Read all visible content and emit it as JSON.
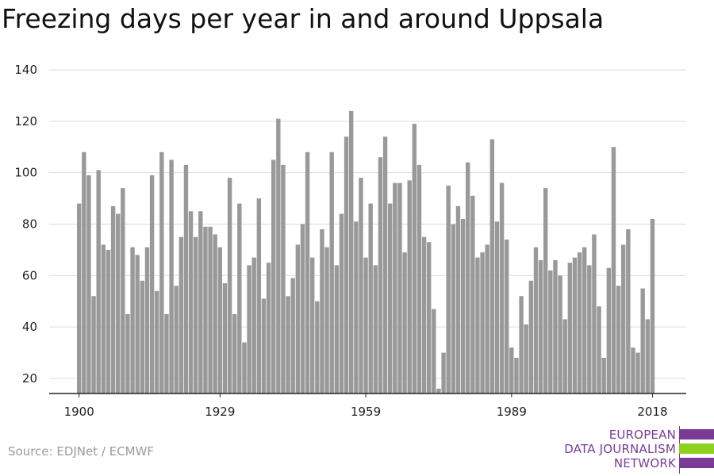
{
  "title": "Freezing days per year in and around Uppsala",
  "source": "Source: EDJNet / ECMWF",
  "logo": {
    "lines": [
      "EUROPEAN",
      "DATA JOURNALISM",
      "NETWORK"
    ],
    "colors": {
      "purple": "#7a3b96",
      "green": "#8fd11f"
    }
  },
  "colors": {
    "bar": "#999999",
    "grid": "#dddddd",
    "axis": "#222222",
    "text": "#222222"
  },
  "chart_data": {
    "type": "bar",
    "title": "Freezing days per year in and around Uppsala",
    "xlabel": "",
    "ylabel": "",
    "x_start": 1900,
    "x_end": 2018,
    "x_ticks": [
      "1900",
      "1929",
      "1959",
      "1989",
      "2018"
    ],
    "y_ticks": [
      "20",
      "40",
      "60",
      "80",
      "100",
      "120",
      "140"
    ],
    "ylim": [
      13,
      140
    ],
    "grid": true,
    "values": [
      88,
      108,
      99,
      52,
      101,
      72,
      70,
      87,
      84,
      94,
      45,
      71,
      68,
      58,
      71,
      99,
      54,
      108,
      45,
      105,
      56,
      75,
      103,
      85,
      75,
      85,
      79,
      79,
      76,
      71,
      57,
      98,
      45,
      88,
      34,
      64,
      67,
      90,
      51,
      65,
      105,
      121,
      103,
      52,
      59,
      72,
      80,
      108,
      67,
      50,
      78,
      71,
      108,
      64,
      84,
      114,
      124,
      81,
      98,
      67,
      88,
      64,
      106,
      114,
      88,
      96,
      96,
      69,
      97,
      119,
      103,
      75,
      73,
      47,
      16,
      30,
      95,
      80,
      87,
      82,
      104,
      91,
      67,
      69,
      72,
      113,
      81,
      96,
      74,
      32,
      28,
      52,
      41,
      58,
      71,
      66,
      94,
      62,
      66,
      60,
      43,
      65,
      67,
      69,
      71,
      64,
      76,
      48,
      28,
      63,
      110,
      56,
      72,
      78,
      32,
      30,
      55,
      43,
      82
    ]
  }
}
